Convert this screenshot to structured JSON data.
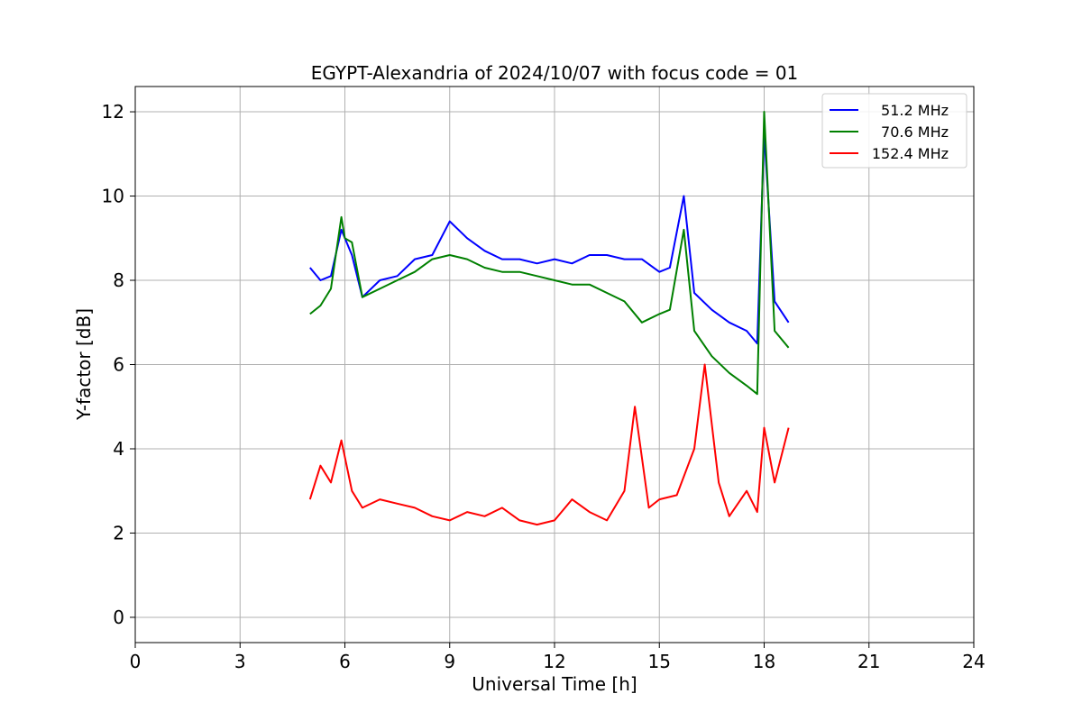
{
  "chart_data": {
    "type": "line",
    "title": "EGYPT-Alexandria of 2024/10/07 with focus code = 01",
    "xlabel": "Universal Time [h]",
    "ylabel": "Y-factor [dB]",
    "xlim": [
      0,
      24
    ],
    "ylim": [
      -0.6,
      12.6
    ],
    "xticks": [
      0,
      3,
      6,
      9,
      12,
      15,
      18,
      21,
      24
    ],
    "yticks": [
      0,
      2,
      4,
      6,
      8,
      10,
      12
    ],
    "grid": true,
    "legend_position": "top-right",
    "series": [
      {
        "name": "51.2 MHz",
        "color": "#0000ff",
        "x": [
          5.0,
          5.3,
          5.6,
          5.9,
          6.2,
          6.5,
          7.0,
          7.5,
          8.0,
          8.5,
          9.0,
          9.5,
          10.0,
          10.5,
          11.0,
          11.5,
          12.0,
          12.5,
          13.0,
          13.5,
          14.0,
          14.5,
          15.0,
          15.3,
          15.7,
          16.0,
          16.5,
          17.0,
          17.5,
          17.8,
          18.0,
          18.3,
          18.7
        ],
        "values": [
          8.3,
          8.0,
          8.1,
          9.2,
          8.6,
          7.6,
          8.0,
          8.1,
          8.5,
          8.6,
          9.4,
          9.0,
          8.7,
          8.5,
          8.5,
          8.4,
          8.5,
          8.4,
          8.6,
          8.6,
          8.5,
          8.5,
          8.2,
          8.3,
          10.0,
          7.7,
          7.3,
          7.0,
          6.8,
          6.5,
          11.5,
          7.5,
          7.0
        ]
      },
      {
        "name": "70.6 MHz",
        "color": "#008000",
        "x": [
          5.0,
          5.3,
          5.6,
          5.9,
          6.0,
          6.2,
          6.5,
          7.0,
          7.5,
          8.0,
          8.5,
          9.0,
          9.5,
          10.0,
          10.5,
          11.0,
          11.5,
          12.0,
          12.5,
          13.0,
          13.5,
          14.0,
          14.5,
          15.0,
          15.3,
          15.7,
          16.0,
          16.5,
          17.0,
          17.5,
          17.8,
          18.0,
          18.3,
          18.7
        ],
        "values": [
          7.2,
          7.4,
          7.8,
          9.5,
          9.0,
          8.9,
          7.6,
          7.8,
          8.0,
          8.2,
          8.5,
          8.6,
          8.5,
          8.3,
          8.2,
          8.2,
          8.1,
          8.0,
          7.9,
          7.9,
          7.7,
          7.5,
          7.0,
          7.2,
          7.3,
          9.2,
          6.8,
          6.2,
          5.8,
          5.5,
          5.3,
          12.0,
          6.8,
          6.4
        ]
      },
      {
        "name": "152.4 MHz",
        "color": "#ff0000",
        "x": [
          5.0,
          5.3,
          5.6,
          5.9,
          6.2,
          6.5,
          7.0,
          7.5,
          8.0,
          8.5,
          9.0,
          9.5,
          10.0,
          10.5,
          11.0,
          11.5,
          12.0,
          12.5,
          13.0,
          13.5,
          14.0,
          14.3,
          14.7,
          15.0,
          15.5,
          16.0,
          16.3,
          16.7,
          17.0,
          17.5,
          17.8,
          18.0,
          18.3,
          18.7
        ],
        "values": [
          2.8,
          3.6,
          3.2,
          4.2,
          3.0,
          2.6,
          2.8,
          2.7,
          2.6,
          2.4,
          2.3,
          2.5,
          2.4,
          2.6,
          2.3,
          2.2,
          2.3,
          2.8,
          2.5,
          2.3,
          3.0,
          5.0,
          2.6,
          2.8,
          2.9,
          4.0,
          6.0,
          3.2,
          2.4,
          3.0,
          2.5,
          4.5,
          3.2,
          4.5
        ]
      }
    ]
  }
}
